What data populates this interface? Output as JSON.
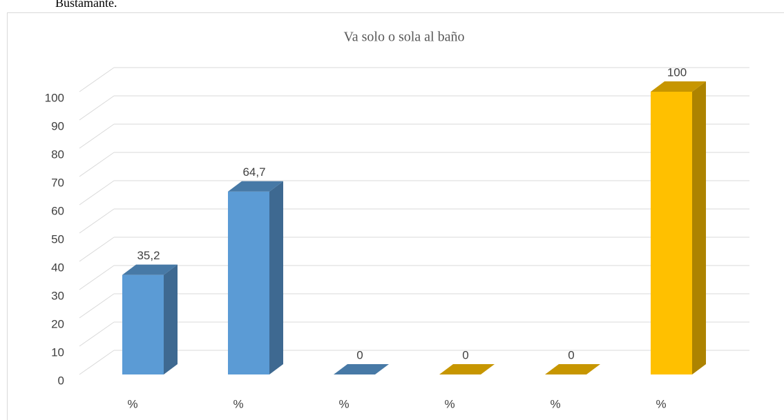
{
  "caption": "Bustamante.",
  "chart_data": {
    "type": "bar3d",
    "title": "Va solo o sola al baño",
    "categories": [
      "%",
      "%",
      "%",
      "%",
      "%",
      "%"
    ],
    "values": [
      35.2,
      64.7,
      0,
      0,
      0,
      100
    ],
    "value_labels": [
      "35,2",
      "64,7",
      "0",
      "0",
      "0",
      "100"
    ],
    "colors": [
      "#5b9bd5",
      "#5b9bd5",
      "#5b9bd5",
      "#ffc000",
      "#ffc000",
      "#ffc000"
    ],
    "ylim": [
      0,
      100
    ],
    "yticks": [
      0,
      10,
      20,
      30,
      40,
      50,
      60,
      70,
      80,
      90,
      100
    ],
    "grid": true
  }
}
